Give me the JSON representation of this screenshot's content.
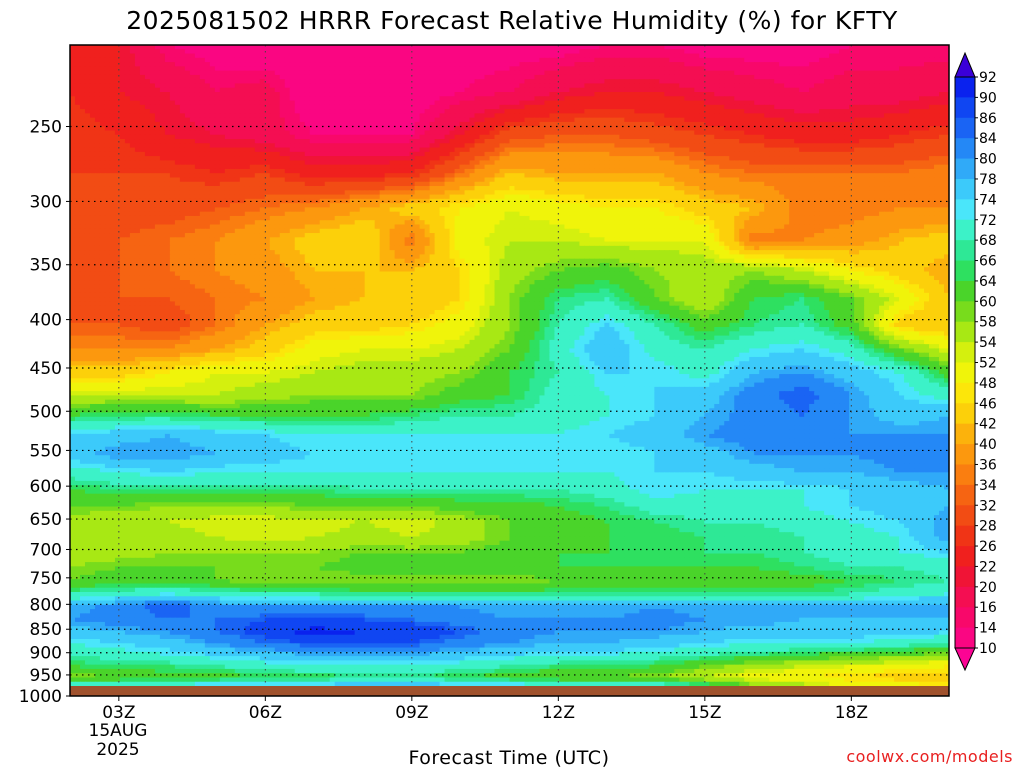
{
  "chart_data": {
    "type": "heatmap",
    "title": "2025081502 HRRR Forecast Relative Humidity (%) for KFTY",
    "xlabel": "Forecast Time (UTC)",
    "ylabel": "",
    "x": [
      2,
      3,
      4,
      5,
      6,
      7,
      8,
      9,
      10,
      11,
      12,
      13,
      14,
      15,
      16,
      17,
      18,
      19,
      20
    ],
    "x_ticks": [
      {
        "hour": 3,
        "label": "03Z"
      },
      {
        "hour": 6,
        "label": "06Z"
      },
      {
        "hour": 9,
        "label": "09Z"
      },
      {
        "hour": 12,
        "label": "12Z"
      },
      {
        "hour": 15,
        "label": "15Z"
      },
      {
        "hour": 18,
        "label": "18Z"
      }
    ],
    "x_date_lines": [
      "15AUG",
      "2025"
    ],
    "y_ticks": [
      250,
      300,
      350,
      400,
      450,
      500,
      550,
      600,
      650,
      700,
      750,
      800,
      850,
      900,
      950,
      1000
    ],
    "y_unit": "hPa",
    "ylim": [
      1000,
      205
    ],
    "grid": true,
    "surface_pressure": 976,
    "colorbar": {
      "labels": [
        92,
        90,
        86,
        84,
        80,
        78,
        74,
        72,
        68,
        66,
        64,
        60,
        58,
        54,
        52,
        48,
        46,
        42,
        40,
        36,
        34,
        32,
        28,
        26,
        22,
        20,
        16,
        14,
        10
      ],
      "colors": [
        "#3a00d8",
        "#0a22ee",
        "#1046f2",
        "#1a64f4",
        "#2488f6",
        "#30aaf8",
        "#3ccafa",
        "#4ae6fa",
        "#3cf2c8",
        "#2ee896",
        "#2ee060",
        "#4ad42a",
        "#78dc1c",
        "#a8e814",
        "#d4f00e",
        "#f0f40a",
        "#fce60a",
        "#fcd00a",
        "#fcb20c",
        "#fc980e",
        "#fa7e10",
        "#f66412",
        "#f24c14",
        "#f03416",
        "#f0201e",
        "#f01436",
        "#f40e52",
        "#f8086a",
        "#fa0682",
        "#fc0494"
      ]
    },
    "rows": [
      {
        "p": 205,
        "rh": [
          26,
          22,
          14,
          12,
          10,
          10,
          10,
          10,
          12,
          12,
          12,
          14,
          14,
          12,
          12,
          12,
          14,
          14,
          14
        ]
      },
      {
        "p": 230,
        "rh": [
          26,
          22,
          20,
          16,
          18,
          10,
          10,
          12,
          14,
          16,
          20,
          22,
          22,
          20,
          18,
          16,
          18,
          18,
          20
        ]
      },
      {
        "p": 255,
        "rh": [
          28,
          26,
          22,
          20,
          18,
          14,
          14,
          14,
          22,
          30,
          32,
          32,
          30,
          28,
          26,
          24,
          24,
          26,
          28
        ]
      },
      {
        "p": 280,
        "rh": [
          28,
          28,
          28,
          26,
          28,
          24,
          24,
          26,
          34,
          42,
          40,
          40,
          40,
          36,
          34,
          34,
          34,
          34,
          36
        ]
      },
      {
        "p": 305,
        "rh": [
          28,
          30,
          30,
          32,
          34,
          36,
          40,
          44,
          48,
          52,
          50,
          48,
          48,
          44,
          42,
          34,
          34,
          36,
          36
        ]
      },
      {
        "p": 330,
        "rh": [
          30,
          32,
          34,
          36,
          40,
          44,
          46,
          34,
          50,
          54,
          54,
          52,
          52,
          52,
          34,
          36,
          38,
          42,
          44
        ]
      },
      {
        "p": 355,
        "rh": [
          30,
          32,
          34,
          36,
          38,
          42,
          42,
          42,
          46,
          56,
          60,
          62,
          58,
          56,
          58,
          54,
          48,
          44,
          40
        ]
      },
      {
        "p": 380,
        "rh": [
          30,
          32,
          32,
          34,
          36,
          40,
          42,
          42,
          46,
          58,
          66,
          68,
          60,
          54,
          64,
          66,
          60,
          52,
          42
        ]
      },
      {
        "p": 405,
        "rh": [
          32,
          32,
          30,
          34,
          40,
          44,
          44,
          46,
          50,
          58,
          68,
          74,
          68,
          62,
          66,
          68,
          62,
          44,
          42
        ]
      },
      {
        "p": 430,
        "rh": [
          36,
          36,
          36,
          40,
          44,
          50,
          52,
          52,
          54,
          60,
          70,
          78,
          70,
          68,
          72,
          74,
          70,
          60,
          52
        ]
      },
      {
        "p": 455,
        "rh": [
          44,
          44,
          48,
          52,
          52,
          54,
          56,
          56,
          58,
          64,
          68,
          74,
          74,
          70,
          78,
          80,
          76,
          72,
          62
        ]
      },
      {
        "p": 480,
        "rh": [
          54,
          54,
          54,
          54,
          56,
          58,
          58,
          58,
          62,
          64,
          70,
          72,
          74,
          76,
          82,
          86,
          80,
          74,
          70
        ]
      },
      {
        "p": 505,
        "rh": [
          64,
          66,
          66,
          64,
          64,
          64,
          64,
          66,
          68,
          68,
          70,
          72,
          74,
          78,
          82,
          84,
          80,
          76,
          78
        ]
      },
      {
        "p": 530,
        "rh": [
          74,
          76,
          78,
          76,
          74,
          72,
          72,
          72,
          72,
          72,
          72,
          74,
          76,
          80,
          82,
          82,
          80,
          80,
          80
        ]
      },
      {
        "p": 555,
        "rh": [
          76,
          80,
          80,
          78,
          76,
          74,
          74,
          74,
          74,
          72,
          72,
          72,
          74,
          76,
          80,
          80,
          80,
          82,
          80
        ]
      },
      {
        "p": 580,
        "rh": [
          70,
          72,
          74,
          72,
          72,
          72,
          72,
          72,
          72,
          72,
          72,
          72,
          74,
          74,
          76,
          78,
          78,
          80,
          80
        ]
      },
      {
        "p": 605,
        "rh": [
          64,
          66,
          66,
          66,
          66,
          66,
          68,
          68,
          68,
          68,
          68,
          70,
          74,
          72,
          72,
          72,
          74,
          76,
          78
        ]
      },
      {
        "p": 630,
        "rh": [
          60,
          60,
          58,
          58,
          58,
          60,
          60,
          60,
          62,
          62,
          64,
          66,
          70,
          70,
          70,
          72,
          74,
          76,
          78
        ]
      },
      {
        "p": 655,
        "rh": [
          56,
          54,
          54,
          52,
          52,
          52,
          54,
          52,
          56,
          60,
          62,
          64,
          66,
          68,
          68,
          70,
          72,
          74,
          80
        ]
      },
      {
        "p": 680,
        "rh": [
          56,
          56,
          56,
          54,
          52,
          54,
          56,
          54,
          56,
          60,
          62,
          64,
          64,
          66,
          66,
          68,
          70,
          72,
          80
        ]
      },
      {
        "p": 705,
        "rh": [
          54,
          56,
          58,
          58,
          58,
          58,
          60,
          60,
          60,
          62,
          64,
          64,
          64,
          66,
          66,
          68,
          70,
          72,
          74
        ]
      },
      {
        "p": 730,
        "rh": [
          58,
          60,
          60,
          60,
          60,
          60,
          62,
          62,
          62,
          62,
          64,
          64,
          64,
          64,
          64,
          66,
          68,
          68,
          70
        ]
      },
      {
        "p": 755,
        "rh": [
          60,
          62,
          62,
          60,
          58,
          58,
          58,
          58,
          58,
          58,
          60,
          60,
          60,
          62,
          62,
          62,
          64,
          66,
          68
        ]
      },
      {
        "p": 780,
        "rh": [
          68,
          70,
          72,
          70,
          68,
          68,
          66,
          66,
          66,
          66,
          66,
          66,
          66,
          66,
          66,
          66,
          68,
          70,
          72
        ]
      },
      {
        "p": 805,
        "rh": [
          78,
          82,
          86,
          82,
          80,
          80,
          80,
          80,
          80,
          78,
          78,
          78,
          80,
          78,
          78,
          78,
          78,
          80,
          80
        ]
      },
      {
        "p": 830,
        "rh": [
          80,
          82,
          84,
          84,
          86,
          86,
          86,
          84,
          82,
          80,
          80,
          80,
          82,
          80,
          80,
          78,
          78,
          78,
          78
        ]
      },
      {
        "p": 855,
        "rh": [
          76,
          78,
          80,
          84,
          88,
          92,
          90,
          90,
          86,
          82,
          80,
          80,
          80,
          78,
          76,
          76,
          76,
          76,
          74
        ]
      },
      {
        "p": 880,
        "rh": [
          72,
          74,
          76,
          80,
          84,
          86,
          86,
          86,
          82,
          80,
          78,
          78,
          76,
          74,
          72,
          72,
          72,
          70,
          68
        ]
      },
      {
        "p": 905,
        "rh": [
          68,
          70,
          72,
          74,
          76,
          78,
          78,
          78,
          76,
          74,
          72,
          72,
          70,
          68,
          66,
          64,
          62,
          60,
          58
        ]
      },
      {
        "p": 930,
        "rh": [
          64,
          66,
          66,
          68,
          70,
          72,
          72,
          72,
          70,
          68,
          66,
          66,
          64,
          60,
          56,
          54,
          52,
          50,
          48
        ]
      },
      {
        "p": 955,
        "rh": [
          58,
          60,
          62,
          62,
          64,
          64,
          66,
          66,
          64,
          62,
          60,
          60,
          58,
          54,
          50,
          48,
          46,
          44,
          44
        ]
      },
      {
        "p": 976,
        "rh": [
          72,
          74,
          74,
          76,
          76,
          76,
          78,
          78,
          76,
          76,
          74,
          74,
          72,
          68,
          60,
          56,
          52,
          50,
          48
        ]
      }
    ]
  },
  "watermark": "coolwx.com/models",
  "colors": {
    "ground": "#a0522d",
    "watermark": "#e82020",
    "grid": "#000000"
  }
}
